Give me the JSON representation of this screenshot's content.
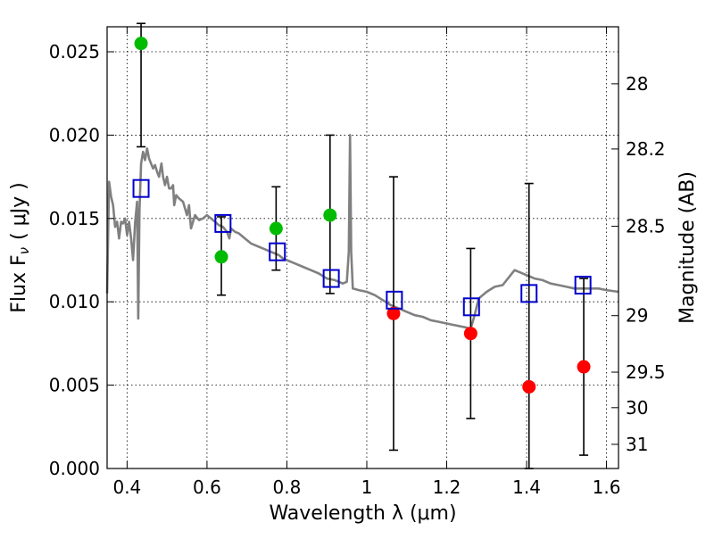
{
  "chart_data": {
    "type": "scatter",
    "xlabel": "Wavelength  λ (μm)",
    "ylabel": "Flux  F",
    "ylabel_sub": "ν",
    "ylabel_units": "( μJy )",
    "y2label": "Magnitude (AB)",
    "xlim": [
      0.35,
      1.63
    ],
    "ylim": [
      0.0,
      0.0265
    ],
    "xticks": [
      0.4,
      0.6,
      0.8,
      1.0,
      1.2,
      1.4,
      1.6
    ],
    "xtick_labels": [
      "0.4",
      "0.6",
      "0.8",
      "1",
      "1.2",
      "1.4",
      "1.6"
    ],
    "yticks": [
      0.0,
      0.005,
      0.01,
      0.015,
      0.02,
      0.025
    ],
    "ytick_labels": [
      "0.000",
      "0.005",
      "0.010",
      "0.015",
      "0.020",
      "0.025"
    ],
    "y2_ticks": [
      {
        "label": "28",
        "flux": 0.02308
      },
      {
        "label": "28.2",
        "flux": 0.01917
      },
      {
        "label": "28.5",
        "flux": 0.01453
      },
      {
        "label": "29",
        "flux": 0.00917
      },
      {
        "label": "29.5",
        "flux": 0.00578
      },
      {
        "label": "30",
        "flux": 0.00365
      },
      {
        "label": "31",
        "flux": 0.00145
      }
    ],
    "grid": true,
    "colors": {
      "model_line": "#808080",
      "detected": "#00bb00",
      "undetected": "#ff0000",
      "model_band": "#0000cc",
      "errorbar": "#000000"
    },
    "series": [
      {
        "marker": "circle",
        "color": "#00bb00",
        "points": [
          {
            "x": 0.435,
            "y": 0.0255,
            "yerr_low": 0.0062,
            "yerr_high": 0.0012
          },
          {
            "x": 0.636,
            "y": 0.0127,
            "yerr_low": 0.0023,
            "yerr_high": 0.0024
          },
          {
            "x": 0.773,
            "y": 0.0144,
            "yerr_low": 0.0025,
            "yerr_high": 0.0025
          },
          {
            "x": 0.908,
            "y": 0.0152,
            "yerr_low": 0.0047,
            "yerr_high": 0.0048
          }
        ]
      },
      {
        "marker": "circle",
        "color": "#ff0000",
        "points": [
          {
            "x": 1.067,
            "y": 0.0093,
            "yerr_low": 0.0082,
            "yerr_high": 0.0082
          },
          {
            "x": 1.26,
            "y": 0.0081,
            "yerr_low": 0.0051,
            "yerr_high": 0.0051
          },
          {
            "x": 1.406,
            "y": 0.0049,
            "yerr_low": 0.0049,
            "yerr_high": 0.0122
          },
          {
            "x": 1.543,
            "y": 0.0061,
            "yerr_low": 0.0053,
            "yerr_high": 0.0053
          }
        ]
      },
      {
        "marker": "square-open",
        "color": "#0000cc",
        "points": [
          {
            "x": 0.435,
            "y": 0.0168
          },
          {
            "x": 0.64,
            "y": 0.0147
          },
          {
            "x": 0.776,
            "y": 0.013
          },
          {
            "x": 0.911,
            "y": 0.0114
          },
          {
            "x": 1.069,
            "y": 0.0101
          },
          {
            "x": 1.262,
            "y": 0.0097
          },
          {
            "x": 1.406,
            "y": 0.0105
          },
          {
            "x": 1.541,
            "y": 0.011
          }
        ]
      },
      {
        "marker": "line",
        "color": "#808080",
        "points": [
          [
            0.35,
            0.0105
          ],
          [
            0.355,
            0.0172
          ],
          [
            0.36,
            0.0163
          ],
          [
            0.365,
            0.0158
          ],
          [
            0.37,
            0.0145
          ],
          [
            0.375,
            0.0148
          ],
          [
            0.38,
            0.0138
          ],
          [
            0.385,
            0.0148
          ],
          [
            0.39,
            0.0147
          ],
          [
            0.395,
            0.015
          ],
          [
            0.4,
            0.014
          ],
          [
            0.405,
            0.0148
          ],
          [
            0.41,
            0.0138
          ],
          [
            0.415,
            0.0125
          ],
          [
            0.42,
            0.0147
          ],
          [
            0.425,
            0.016
          ],
          [
            0.428,
            0.009
          ],
          [
            0.431,
            0.0155
          ],
          [
            0.435,
            0.0183
          ],
          [
            0.44,
            0.019
          ],
          [
            0.445,
            0.0185
          ],
          [
            0.45,
            0.0192
          ],
          [
            0.455,
            0.0186
          ],
          [
            0.46,
            0.0183
          ],
          [
            0.465,
            0.018
          ],
          [
            0.47,
            0.0182
          ],
          [
            0.475,
            0.0178
          ],
          [
            0.48,
            0.0175
          ],
          [
            0.486,
            0.0183
          ],
          [
            0.49,
            0.0175
          ],
          [
            0.495,
            0.017
          ],
          [
            0.5,
            0.0175
          ],
          [
            0.505,
            0.0168
          ],
          [
            0.51,
            0.0168
          ],
          [
            0.515,
            0.017
          ],
          [
            0.518,
            0.0158
          ],
          [
            0.523,
            0.0164
          ],
          [
            0.53,
            0.0162
          ],
          [
            0.54,
            0.016
          ],
          [
            0.545,
            0.0156
          ],
          [
            0.55,
            0.0152
          ],
          [
            0.555,
            0.0158
          ],
          [
            0.56,
            0.0144
          ],
          [
            0.57,
            0.0152
          ],
          [
            0.58,
            0.0149
          ],
          [
            0.59,
            0.015
          ],
          [
            0.6,
            0.0152
          ],
          [
            0.61,
            0.015
          ],
          [
            0.62,
            0.0148
          ],
          [
            0.63,
            0.0146
          ],
          [
            0.64,
            0.0145
          ],
          [
            0.65,
            0.0142
          ],
          [
            0.656,
            0.0138
          ],
          [
            0.66,
            0.0144
          ],
          [
            0.67,
            0.0142
          ],
          [
            0.68,
            0.0141
          ],
          [
            0.69,
            0.0139
          ],
          [
            0.7,
            0.0137
          ],
          [
            0.71,
            0.0135
          ],
          [
            0.72,
            0.0134
          ],
          [
            0.73,
            0.0133
          ],
          [
            0.74,
            0.0132
          ],
          [
            0.75,
            0.0131
          ],
          [
            0.76,
            0.013
          ],
          [
            0.77,
            0.0129
          ],
          [
            0.78,
            0.0128
          ],
          [
            0.79,
            0.0126
          ],
          [
            0.8,
            0.0125
          ],
          [
            0.82,
            0.0123
          ],
          [
            0.84,
            0.0121
          ],
          [
            0.86,
            0.0119
          ],
          [
            0.88,
            0.0117
          ],
          [
            0.9,
            0.0114
          ],
          [
            0.92,
            0.0113
          ],
          [
            0.94,
            0.0111
          ],
          [
            0.95,
            0.0112
          ],
          [
            0.955,
            0.013
          ],
          [
            0.958,
            0.02
          ],
          [
            0.961,
            0.013
          ],
          [
            0.965,
            0.0108
          ],
          [
            0.98,
            0.0107
          ],
          [
            1.0,
            0.0106
          ],
          [
            1.02,
            0.0104
          ],
          [
            1.04,
            0.0101
          ],
          [
            1.06,
            0.0098
          ],
          [
            1.08,
            0.0096
          ],
          [
            1.1,
            0.0094
          ],
          [
            1.12,
            0.0092
          ],
          [
            1.14,
            0.0091
          ],
          [
            1.16,
            0.0089
          ],
          [
            1.18,
            0.0088
          ],
          [
            1.2,
            0.0087
          ],
          [
            1.22,
            0.0086
          ],
          [
            1.24,
            0.0085
          ],
          [
            1.26,
            0.0084
          ],
          [
            1.27,
            0.0092
          ],
          [
            1.28,
            0.0102
          ],
          [
            1.3,
            0.0106
          ],
          [
            1.32,
            0.0109
          ],
          [
            1.34,
            0.011
          ],
          [
            1.36,
            0.0116
          ],
          [
            1.37,
            0.0119
          ],
          [
            1.38,
            0.0118
          ],
          [
            1.4,
            0.0116
          ],
          [
            1.42,
            0.0114
          ],
          [
            1.44,
            0.0113
          ],
          [
            1.46,
            0.0111
          ],
          [
            1.48,
            0.011
          ],
          [
            1.5,
            0.0109
          ],
          [
            1.52,
            0.0108
          ],
          [
            1.54,
            0.0108
          ],
          [
            1.56,
            0.0108
          ],
          [
            1.58,
            0.0108
          ],
          [
            1.6,
            0.0107
          ],
          [
            1.63,
            0.0106
          ]
        ]
      }
    ]
  }
}
